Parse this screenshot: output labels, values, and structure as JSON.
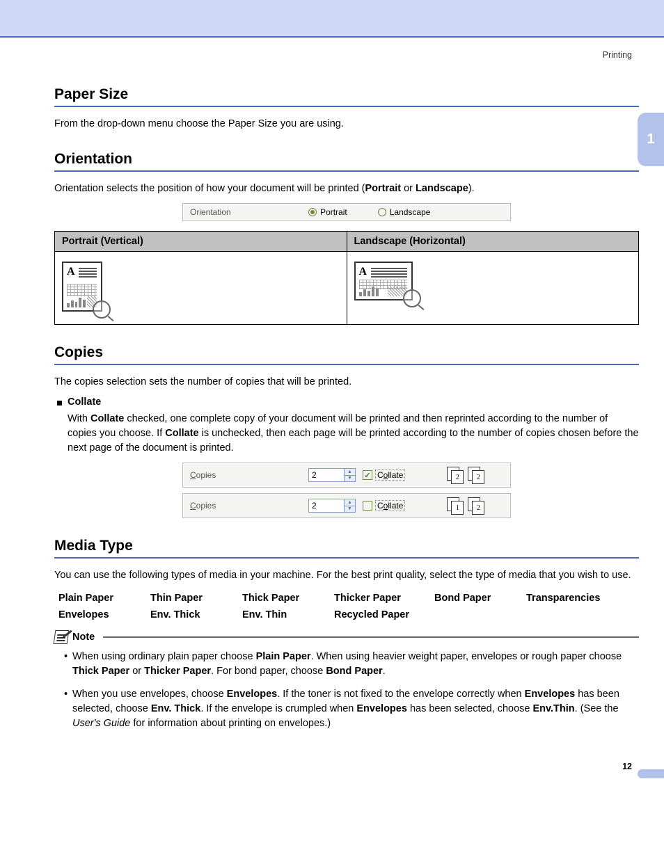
{
  "header": {
    "category": "Printing",
    "chapter_tab": "1"
  },
  "sections": {
    "paper_size": {
      "title": "Paper Size",
      "body": "From the drop-down menu choose the Paper Size you are using."
    },
    "orientation": {
      "title": "Orientation",
      "body_pre": "Orientation selects the position of how your document will be printed (",
      "portrait_b": "Portrait",
      "body_mid": " or ",
      "landscape_b": "Landscape",
      "body_post": ").",
      "strip_label": "Orientation",
      "radio_portrait": "Portrait",
      "radio_portrait_underline": "t",
      "radio_landscape": "Landscape",
      "radio_landscape_underline": "L",
      "table": {
        "col1": "Portrait (Vertical)",
        "col2": "Landscape (Horizontal)"
      }
    },
    "copies": {
      "title": "Copies",
      "body": "The copies selection sets the number of copies that will be printed.",
      "collate_head": "Collate",
      "collate_body": "With <b>Collate</b> checked, one complete copy of your document will be printed and then reprinted according to the number of copies you choose. If <b>Collate</b> is unchecked, then each page will be printed according to the number of copies chosen before the next page of the document is printed.",
      "strip_label": "Copies",
      "value": "2",
      "chk_label": "Collate",
      "collated": {
        "g1": [
          "1",
          "2"
        ],
        "g2": [
          "1",
          "2"
        ]
      },
      "uncollated": {
        "g1": [
          "1",
          "1"
        ],
        "g2": [
          "2",
          "2"
        ]
      }
    },
    "media": {
      "title": "Media Type",
      "body": "You can use the following types of media in your machine. For the best print quality, select the type of media that you wish to use.",
      "items": [
        "Plain Paper",
        "Thin Paper",
        "Thick Paper",
        "Thicker Paper",
        "Bond Paper",
        "Transparencies",
        "Envelopes",
        "Env. Thick",
        "Env. Thin",
        "Recycled Paper"
      ],
      "note_label": "Note",
      "note1": "When using ordinary plain paper choose <b>Plain Paper</b>. When using heavier weight paper, envelopes or rough paper choose <b>Thick Paper</b> or <b>Thicker Paper</b>. For bond paper, choose <b>Bond Paper</b>.",
      "note2": "When you use envelopes, choose <b>Envelopes</b>. If the toner is not fixed to the envelope correctly when <b>Envelopes</b> has been selected, choose <b>Env. Thick</b>. If the envelope is crumpled when <b>Envelopes</b> has been selected, choose <b>Env.Thin</b>. (See the <i>User's Guide</i> for information about printing on envelopes.)"
    }
  },
  "footer": {
    "page": "12"
  },
  "colors": {
    "banner": "#cfd9f7",
    "rule": "#4a69bd",
    "sidetab": "#b3c2ea",
    "table_header": "#c0c0c0"
  }
}
